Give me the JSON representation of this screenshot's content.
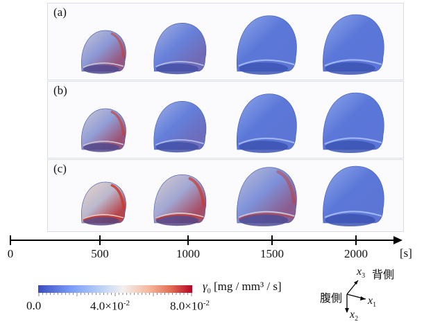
{
  "panels": [
    {
      "label": "(a)",
      "levels": [
        0.55,
        0.22,
        0.02,
        0.01
      ]
    },
    {
      "label": "(b)",
      "levels": [
        0.6,
        0.18,
        0.03,
        0.01
      ]
    },
    {
      "label": "(c)",
      "levels": [
        0.85,
        0.7,
        0.45,
        0.03
      ]
    }
  ],
  "time_axis": {
    "ticks": [
      "0",
      "500",
      "1000",
      "1500",
      "2000"
    ],
    "unit": "[s]"
  },
  "colorbar": {
    "title_symbol": "γ",
    "title_sub": "0",
    "title_unit": "[mg / mm³ / s]",
    "min_label": "0.0",
    "mid_label_base": "4.0×10",
    "mid_label_exp": "-2",
    "max_label_base": "8.0×10",
    "max_label_exp": "-2",
    "colors": [
      "#3b4cc0",
      "#c0d4f5",
      "#f2f0ef",
      "#b40426"
    ]
  },
  "axes_legend": {
    "x3": "x",
    "x3_sub": "3",
    "dorsal": "背側",
    "ventral": "腹側",
    "x1": "x",
    "x1_sub": "1",
    "x2": "x",
    "x2_sub": "2"
  }
}
